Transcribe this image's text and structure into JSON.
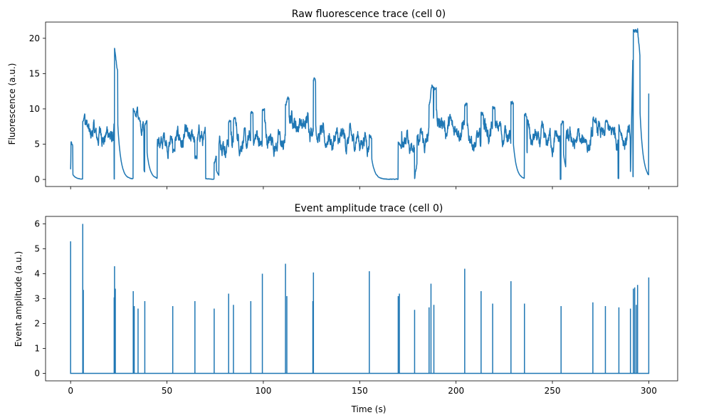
{
  "chart_data": [
    {
      "type": "line",
      "title": "Raw fluorescence trace (cell 0)",
      "xlabel": "",
      "ylabel": "Fluorescence (a.u.)",
      "xlim": [
        -13,
        315
      ],
      "ylim": [
        -1,
        22.3
      ],
      "xticks": [
        0,
        50,
        100,
        150,
        200,
        250,
        300
      ],
      "xtick_labels_visible": false,
      "yticks": [
        0,
        5,
        10,
        15,
        20
      ],
      "ytick_labels": [
        "0",
        "5",
        "10",
        "15",
        "20"
      ],
      "color": "#1f77b4",
      "grid": false,
      "legend": "none",
      "events": [
        {
          "t": 0.0,
          "a": 5.3
        },
        {
          "t": 6.3,
          "a": 6.0
        },
        {
          "t": 22.8,
          "a": 4.3
        },
        {
          "t": 23.2,
          "a": 3.4
        },
        {
          "t": 32.5,
          "a": 3.3
        },
        {
          "t": 33.0,
          "a": 2.7
        },
        {
          "t": 35.0,
          "a": 2.6
        },
        {
          "t": 38.5,
          "a": 2.9
        },
        {
          "t": 53.0,
          "a": 2.7
        },
        {
          "t": 64.5,
          "a": 2.9
        },
        {
          "t": 74.5,
          "a": 2.6
        },
        {
          "t": 82.0,
          "a": 3.2
        },
        {
          "t": 84.5,
          "a": 2.75
        },
        {
          "t": 93.5,
          "a": 2.9
        },
        {
          "t": 99.5,
          "a": 4.0
        },
        {
          "t": 111.5,
          "a": 4.4
        },
        {
          "t": 112.2,
          "a": 3.1
        },
        {
          "t": 126.0,
          "a": 4.05
        },
        {
          "t": 155.0,
          "a": 4.1
        },
        {
          "t": 170.0,
          "a": 3.1
        },
        {
          "t": 170.6,
          "a": 3.2
        },
        {
          "t": 178.5,
          "a": 2.55
        },
        {
          "t": 186.0,
          "a": 2.65
        },
        {
          "t": 187.0,
          "a": 3.6
        },
        {
          "t": 188.5,
          "a": 2.75
        },
        {
          "t": 204.5,
          "a": 4.2
        },
        {
          "t": 213.0,
          "a": 3.3
        },
        {
          "t": 219.0,
          "a": 2.8
        },
        {
          "t": 228.5,
          "a": 3.7
        },
        {
          "t": 235.5,
          "a": 2.8
        },
        {
          "t": 254.5,
          "a": 2.7
        },
        {
          "t": 271.0,
          "a": 2.85
        },
        {
          "t": 277.5,
          "a": 2.7
        },
        {
          "t": 284.5,
          "a": 2.65
        },
        {
          "t": 290.5,
          "a": 2.6
        },
        {
          "t": 292.0,
          "a": 3.4
        },
        {
          "t": 292.7,
          "a": 3.45
        },
        {
          "t": 293.5,
          "a": 2.75
        },
        {
          "t": 294.2,
          "a": 3.55
        },
        {
          "t": 300.0,
          "a": 3.85
        }
      ],
      "baseline_segments": [
        {
          "t0": 6.5,
          "t1": 22.5,
          "level": 6.3
        },
        {
          "t0": 33.0,
          "t1": 38.0,
          "level": 7.3
        },
        {
          "t0": 45.0,
          "t1": 58.0,
          "level": 5.4
        },
        {
          "t0": 58.0,
          "t1": 70.0,
          "level": 5.6
        },
        {
          "t0": 77.0,
          "t1": 112.0,
          "level": 5.2
        },
        {
          "t0": 112.0,
          "t1": 126.0,
          "level": 7.8
        },
        {
          "t0": 127.0,
          "t1": 155.0,
          "level": 5.6
        },
        {
          "t0": 170.5,
          "t1": 186.0,
          "level": 5.3
        },
        {
          "t0": 186.0,
          "t1": 205.0,
          "level": 7.4
        },
        {
          "t0": 205.0,
          "t1": 213.0,
          "level": 5.0
        },
        {
          "t0": 213.0,
          "t1": 229.0,
          "level": 6.4
        },
        {
          "t0": 237.0,
          "t1": 254.0,
          "level": 5.5
        },
        {
          "t0": 257.0,
          "t1": 271.0,
          "level": 5.4
        },
        {
          "t0": 271.0,
          "t1": 284.0,
          "level": 6.2
        },
        {
          "t0": 285.0,
          "t1": 291.0,
          "level": 5.5
        }
      ],
      "series": [
        {
          "x_range": [
            0,
            300
          ],
          "description_points": [
            [
              0,
              0.1
            ],
            [
              0.2,
              5.2
            ],
            [
              5.5,
              0.3
            ],
            [
              6.3,
              8.6
            ],
            [
              22.8,
              18.2
            ],
            [
              23.5,
              16.8
            ],
            [
              31.5,
              0.8
            ],
            [
              32.5,
              9.5
            ],
            [
              38.5,
              7.8
            ],
            [
              39.5,
              8.8
            ],
            [
              44.0,
              2.2
            ],
            [
              45.0,
              4.8
            ],
            [
              74.0,
              2.2
            ],
            [
              82.0,
              8.2
            ],
            [
              99.5,
              9.8
            ],
            [
              111.5,
              10.5
            ],
            [
              112.5,
              11.2
            ],
            [
              126.0,
              14.5
            ],
            [
              155.0,
              6.5
            ],
            [
              168.5,
              0.3
            ],
            [
              170.0,
              5.3
            ],
            [
              178.5,
              0.5
            ],
            [
              186.5,
              11.0
            ],
            [
              187.5,
              13.3
            ],
            [
              204.5,
              10.5
            ],
            [
              213.0,
              9.3
            ],
            [
              228.5,
              11.0
            ],
            [
              235.5,
              9.0
            ],
            [
              254.5,
              8.0
            ],
            [
              271.0,
              8.3
            ],
            [
              277.5,
              8.0
            ],
            [
              284.5,
              8.0
            ],
            [
              290.5,
              0.2
            ],
            [
              292.0,
              21.0
            ],
            [
              294.2,
              21.3
            ],
            [
              299.5,
              6.0
            ],
            [
              300.0,
              12.5
            ]
          ]
        }
      ]
    },
    {
      "type": "line",
      "title": "Event amplitude trace (cell 0)",
      "xlabel": "Time (s)",
      "ylabel": "Event amplitude (a.u.)",
      "xlim": [
        -13,
        315
      ],
      "ylim": [
        -0.3,
        6.3
      ],
      "xticks": [
        0,
        50,
        100,
        150,
        200,
        250,
        300
      ],
      "xtick_labels": [
        "0",
        "50",
        "100",
        "150",
        "200",
        "250",
        "300"
      ],
      "yticks": [
        0,
        1,
        2,
        3,
        4,
        5,
        6
      ],
      "ytick_labels": [
        "0",
        "1",
        "2",
        "3",
        "4",
        "5",
        "6"
      ],
      "color": "#1f77b4",
      "grid": false,
      "legend": "none",
      "baseline": 0,
      "spikes": [
        {
          "x": 0.0,
          "y": 5.3
        },
        {
          "x": 6.3,
          "y": 6.0
        },
        {
          "x": 6.6,
          "y": 3.35
        },
        {
          "x": 22.6,
          "y": 3.05
        },
        {
          "x": 22.8,
          "y": 4.3
        },
        {
          "x": 23.2,
          "y": 3.4
        },
        {
          "x": 32.5,
          "y": 3.3
        },
        {
          "x": 33.0,
          "y": 2.7
        },
        {
          "x": 35.0,
          "y": 2.6
        },
        {
          "x": 38.5,
          "y": 2.9
        },
        {
          "x": 53.0,
          "y": 2.7
        },
        {
          "x": 64.5,
          "y": 2.9
        },
        {
          "x": 74.5,
          "y": 2.6
        },
        {
          "x": 82.0,
          "y": 3.2
        },
        {
          "x": 84.5,
          "y": 2.75
        },
        {
          "x": 93.5,
          "y": 2.9
        },
        {
          "x": 99.5,
          "y": 4.0
        },
        {
          "x": 111.5,
          "y": 4.4
        },
        {
          "x": 112.2,
          "y": 3.1
        },
        {
          "x": 125.7,
          "y": 2.9
        },
        {
          "x": 126.0,
          "y": 4.05
        },
        {
          "x": 155.0,
          "y": 4.1
        },
        {
          "x": 170.0,
          "y": 3.1
        },
        {
          "x": 170.6,
          "y": 3.2
        },
        {
          "x": 178.5,
          "y": 2.55
        },
        {
          "x": 186.0,
          "y": 2.65
        },
        {
          "x": 187.0,
          "y": 3.6
        },
        {
          "x": 188.5,
          "y": 2.75
        },
        {
          "x": 204.5,
          "y": 4.2
        },
        {
          "x": 213.0,
          "y": 3.3
        },
        {
          "x": 219.0,
          "y": 2.8
        },
        {
          "x": 228.5,
          "y": 3.7
        },
        {
          "x": 235.5,
          "y": 2.8
        },
        {
          "x": 254.5,
          "y": 2.7
        },
        {
          "x": 271.0,
          "y": 2.85
        },
        {
          "x": 277.5,
          "y": 2.7
        },
        {
          "x": 284.5,
          "y": 2.65
        },
        {
          "x": 290.5,
          "y": 2.6
        },
        {
          "x": 292.0,
          "y": 3.4
        },
        {
          "x": 292.7,
          "y": 3.45
        },
        {
          "x": 293.5,
          "y": 2.75
        },
        {
          "x": 294.2,
          "y": 3.55
        },
        {
          "x": 300.0,
          "y": 3.85
        }
      ]
    }
  ]
}
